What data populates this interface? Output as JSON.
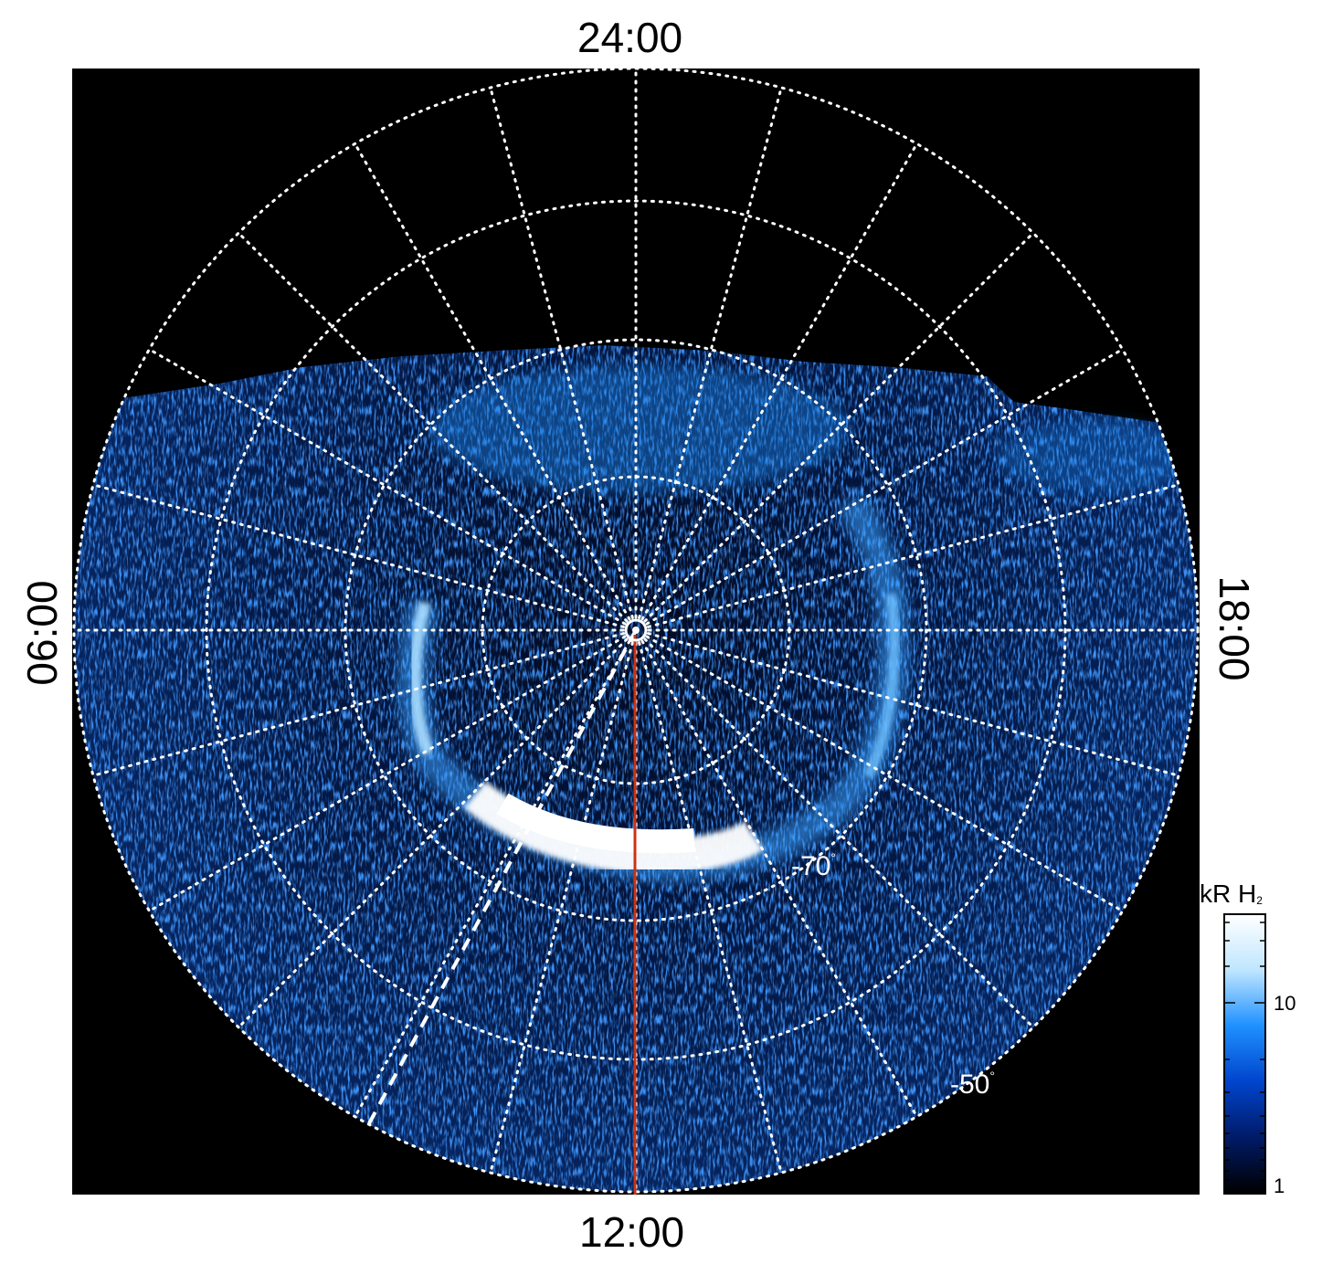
{
  "labels": {
    "top": "24:00",
    "bottom": "12:00",
    "left": "06:00",
    "right": "18:00"
  },
  "latitude_labels": {
    "lat70": "-70",
    "lat50": "-50",
    "degree_symbol": "°"
  },
  "colorbar": {
    "title": "kR H",
    "title_subscript": "2",
    "ticks": [
      {
        "label": "10",
        "value": 10
      },
      {
        "label": "1",
        "value": 1
      }
    ],
    "colors": [
      "#000000",
      "#001a66",
      "#0044cc",
      "#1e90ff",
      "#bfe6ff",
      "#ffffff"
    ]
  },
  "colors": {
    "background": "#000000",
    "grid": "#ffffff",
    "meridian_line": "#cc3311",
    "dashed_line": "#ffffff",
    "oval": "#5ab4ff"
  }
}
